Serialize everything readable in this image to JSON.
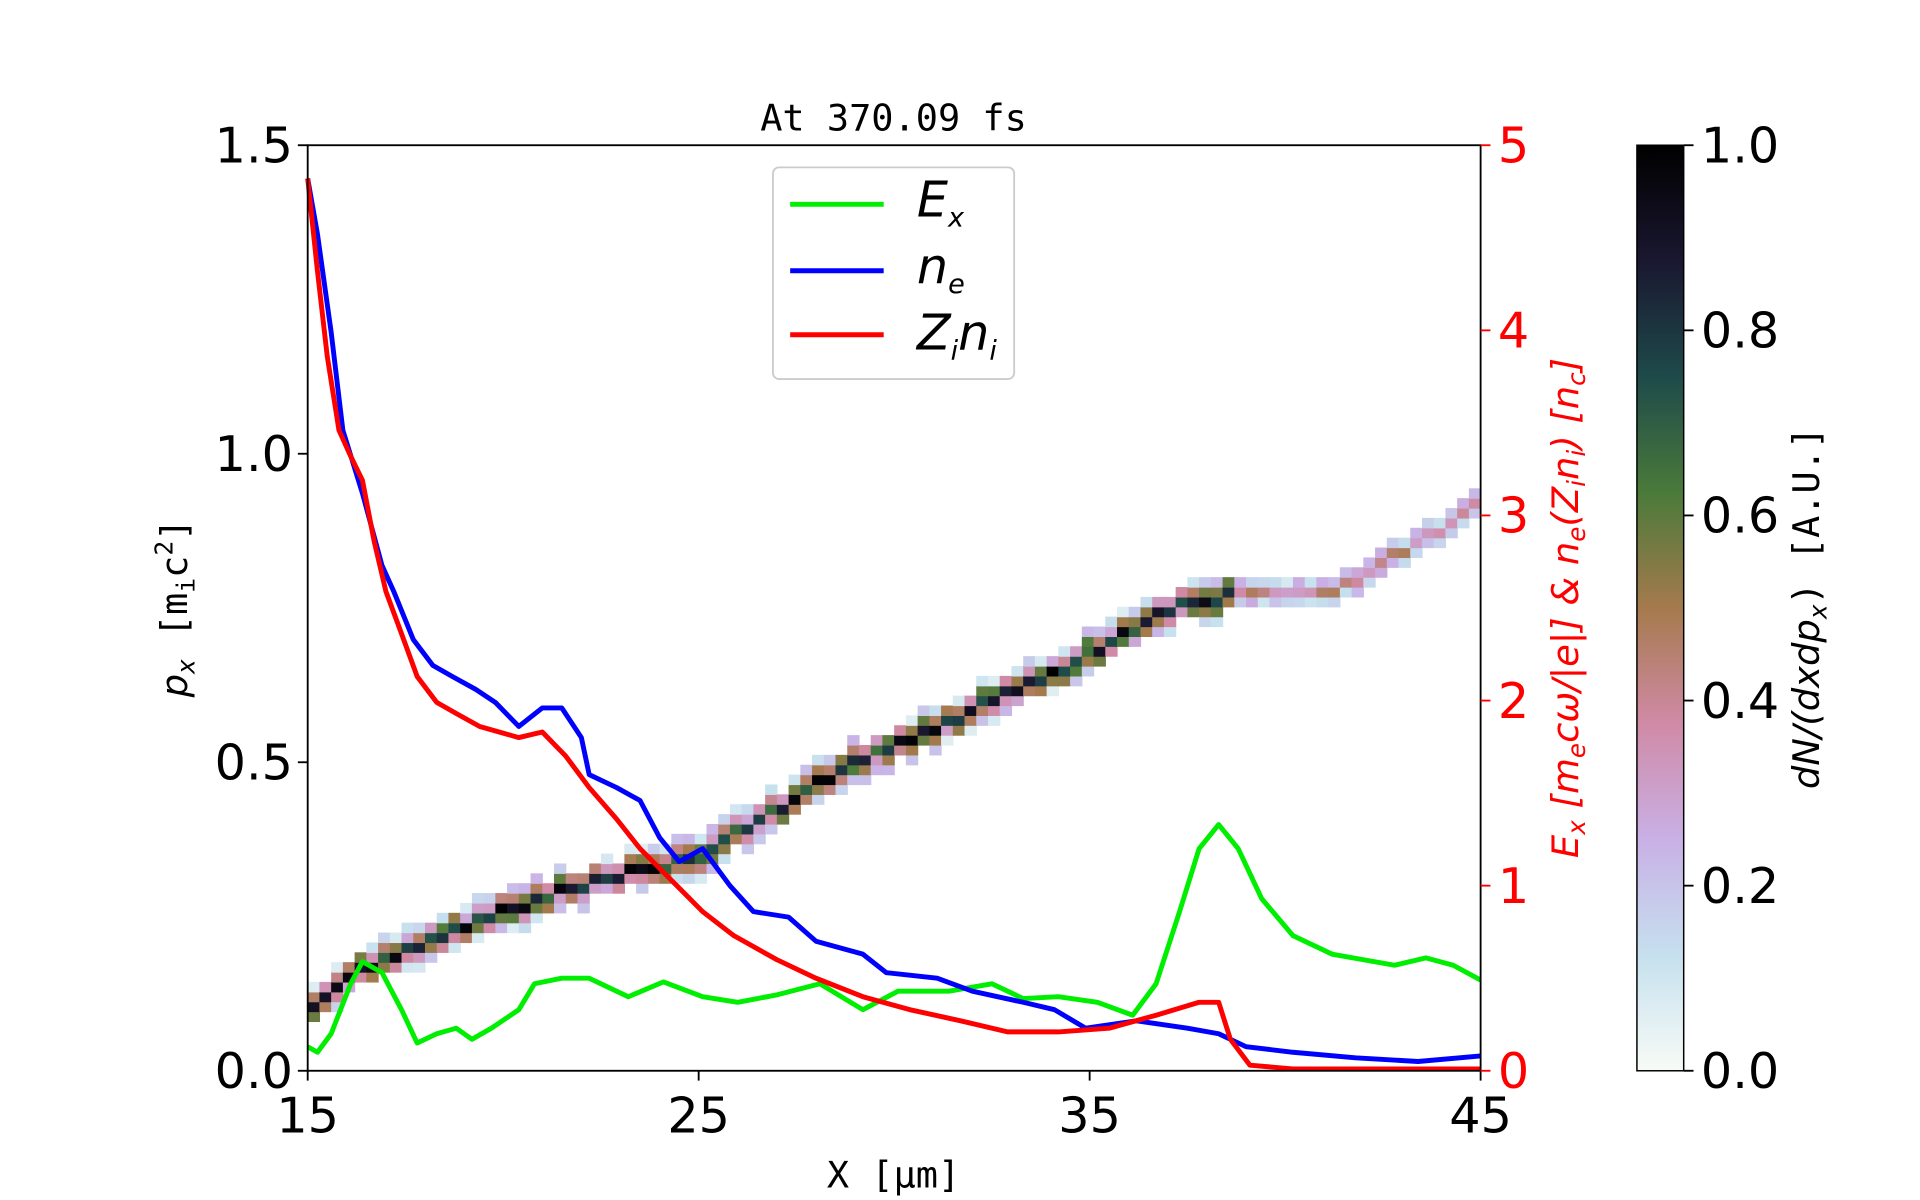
{
  "chart_data": {
    "type": "line",
    "title": "At 370.09 fs",
    "xlabel": "X [μm]",
    "ylabel_left": {
      "base": "p",
      "sub": "x",
      "unit_open": " [m",
      "unit_sub": "i",
      "unit_mid": "c",
      "unit_sup": "2",
      "unit_close": "]"
    },
    "ylabel_right": "E_x [m_e cω/|e|] & n_e(Z_i n_i) [n_c]",
    "ylabel_right_parts": {
      "a": "E",
      "a_sub": "x",
      "b": " [m",
      "b_sub": "e",
      "c": "cω/|e|]  &  n",
      "c_sub": "e",
      "d": "(Z",
      "d_sub": "i",
      "e": "n",
      "e_sub": "i",
      "f": ")  [n",
      "f_sub": "c",
      "g": "]"
    },
    "colorbar_label": {
      "a": "dN/(dxdp",
      "a_sub": "x",
      "b": ")  [A.U.]"
    },
    "xlim": [
      15,
      45
    ],
    "ylim_left": [
      0,
      1.5
    ],
    "ylim_right": [
      0,
      5
    ],
    "clim": [
      0,
      1
    ],
    "x_ticks": [
      "15",
      "25",
      "35",
      "45"
    ],
    "y_left_ticks": [
      "0.0",
      "0.5",
      "1.0",
      "1.5"
    ],
    "y_right_ticks": [
      "0",
      "1",
      "2",
      "3",
      "4",
      "5"
    ],
    "colorbar_ticks": [
      "0.0",
      "0.2",
      "0.4",
      "0.6",
      "0.8",
      "1.0"
    ],
    "legend": {
      "position": "top-center",
      "entries": [
        {
          "base": "E",
          "sub": "x"
        },
        {
          "base": "n",
          "sub": "e"
        },
        {
          "base": "Z",
          "sub": "i",
          "base2": "n",
          "sub2": "i"
        }
      ]
    },
    "series": [
      {
        "name": "E_x",
        "color": "#00ee00",
        "axis": "right",
        "x": [
          15,
          15.25,
          15.6,
          16.1,
          16.4,
          16.9,
          17.4,
          17.8,
          18.3,
          18.8,
          19.2,
          19.7,
          20.4,
          20.8,
          21.5,
          22.2,
          23.2,
          24.1,
          25.1,
          26.0,
          27.0,
          28.1,
          29.2,
          30.1,
          31.4,
          32.5,
          33.3,
          34.2,
          35.2,
          36.1,
          36.7,
          37.3,
          37.8,
          38.3,
          38.8,
          39.4,
          40.2,
          41.2,
          42.8,
          43.6,
          44.3,
          45
        ],
        "y": [
          0.13,
          0.1,
          0.2,
          0.47,
          0.59,
          0.53,
          0.33,
          0.15,
          0.2,
          0.23,
          0.17,
          0.23,
          0.33,
          0.47,
          0.5,
          0.5,
          0.4,
          0.48,
          0.4,
          0.37,
          0.41,
          0.47,
          0.33,
          0.43,
          0.43,
          0.47,
          0.39,
          0.4,
          0.37,
          0.3,
          0.47,
          0.86,
          1.2,
          1.33,
          1.2,
          0.93,
          0.73,
          0.63,
          0.57,
          0.61,
          0.57,
          0.49
        ]
      },
      {
        "name": "n_e",
        "color": "#0000ff",
        "axis": "right",
        "x": [
          15,
          15.25,
          15.6,
          15.9,
          16.4,
          16.9,
          17.2,
          17.7,
          18.2,
          18.7,
          19.3,
          19.8,
          20.4,
          21.0,
          21.5,
          22.0,
          22.2,
          22.9,
          23.5,
          24.0,
          24.5,
          25.1,
          25.8,
          26.4,
          27.3,
          28.0,
          29.2,
          29.8,
          31.1,
          32.0,
          33.3,
          34.1,
          34.9,
          36.2,
          37.5,
          38.3,
          39.0,
          40.2,
          41.8,
          43.4,
          45
        ],
        "y": [
          4.82,
          4.52,
          3.99,
          3.46,
          3.12,
          2.73,
          2.59,
          2.33,
          2.19,
          2.13,
          2.06,
          1.99,
          1.86,
          1.96,
          1.96,
          1.8,
          1.6,
          1.53,
          1.46,
          1.26,
          1.13,
          1.2,
          1.0,
          0.86,
          0.83,
          0.7,
          0.63,
          0.53,
          0.5,
          0.43,
          0.37,
          0.33,
          0.23,
          0.27,
          0.23,
          0.2,
          0.13,
          0.1,
          0.07,
          0.05,
          0.08
        ]
      },
      {
        "name": "Z_i n_i",
        "color": "#ff0000",
        "axis": "right",
        "x": [
          15,
          15.25,
          15.5,
          15.8,
          16.1,
          16.4,
          16.7,
          17.0,
          17.35,
          17.8,
          18.3,
          18.8,
          19.4,
          20.4,
          21.0,
          21.6,
          22.2,
          22.9,
          23.5,
          24.3,
          25.1,
          25.9,
          27.0,
          28.0,
          29.2,
          30.4,
          31.7,
          32.9,
          34.2,
          35.5,
          36.7,
          37.8,
          38.3,
          38.6,
          39.1,
          40.2,
          45
        ],
        "y": [
          4.82,
          4.32,
          3.86,
          3.46,
          3.32,
          3.19,
          2.86,
          2.59,
          2.39,
          2.13,
          1.99,
          1.93,
          1.86,
          1.8,
          1.83,
          1.7,
          1.53,
          1.36,
          1.2,
          1.03,
          0.86,
          0.73,
          0.6,
          0.5,
          0.4,
          0.33,
          0.27,
          0.21,
          0.21,
          0.23,
          0.3,
          0.37,
          0.37,
          0.17,
          0.03,
          0.01,
          0.01
        ]
      }
    ],
    "heatmap_ridge": {
      "axis": "left",
      "x": [
        15,
        16.5,
        21.2,
        25,
        29.2,
        33.9,
        37,
        38.5,
        41,
        45
      ],
      "p": [
        0.08,
        0.16,
        0.28,
        0.34,
        0.5,
        0.63,
        0.74,
        0.76,
        0.76,
        0.91
      ]
    },
    "colormap": [
      "#f7fbf6",
      "#c6e0ee",
      "#c9b0e6",
      "#d08aa6",
      "#a57a4d",
      "#4a7a3a",
      "#1e4a4a",
      "#1a1730",
      "#000000"
    ]
  }
}
